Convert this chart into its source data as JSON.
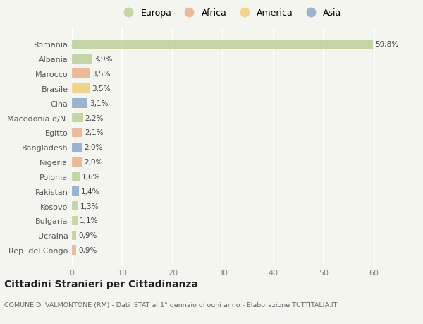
{
  "countries": [
    "Romania",
    "Albania",
    "Marocco",
    "Brasile",
    "Cina",
    "Macedonia d/N.",
    "Egitto",
    "Bangladesh",
    "Nigeria",
    "Polonia",
    "Pakistan",
    "Kosovo",
    "Bulgaria",
    "Ucraina",
    "Rep. del Congo"
  ],
  "values": [
    59.8,
    3.9,
    3.5,
    3.5,
    3.1,
    2.2,
    2.1,
    2.0,
    2.0,
    1.6,
    1.4,
    1.3,
    1.1,
    0.9,
    0.9
  ],
  "labels": [
    "59,8%",
    "3,9%",
    "3,5%",
    "3,5%",
    "3,1%",
    "2,2%",
    "2,1%",
    "2,0%",
    "2,0%",
    "1,6%",
    "1,4%",
    "1,3%",
    "1,1%",
    "0,9%",
    "0,9%"
  ],
  "continents": [
    "Europa",
    "Europa",
    "Africa",
    "America",
    "Asia",
    "Europa",
    "Africa",
    "Asia",
    "Africa",
    "Europa",
    "Asia",
    "Europa",
    "Europa",
    "Europa",
    "Africa"
  ],
  "continent_colors": {
    "Europa": "#b5cc8e",
    "Africa": "#e8a87c",
    "America": "#f0c96b",
    "Asia": "#7b9fc7"
  },
  "legend_order": [
    "Europa",
    "Africa",
    "America",
    "Asia"
  ],
  "legend_colors": [
    "#b5cc8e",
    "#e8a87c",
    "#f0c96b",
    "#7b9fc7"
  ],
  "xlim": [
    0,
    63
  ],
  "xticks": [
    0,
    10,
    20,
    30,
    40,
    50,
    60
  ],
  "title": "Cittadini Stranieri per Cittadinanza",
  "subtitle": "COMUNE DI VALMONTONE (RM) - Dati ISTAT al 1° gennaio di ogni anno - Elaborazione TUTTITALIA.IT",
  "bg_color": "#f5f5f0",
  "grid_color": "#ffffff",
  "bar_height": 0.65,
  "bar_alpha": 0.75
}
